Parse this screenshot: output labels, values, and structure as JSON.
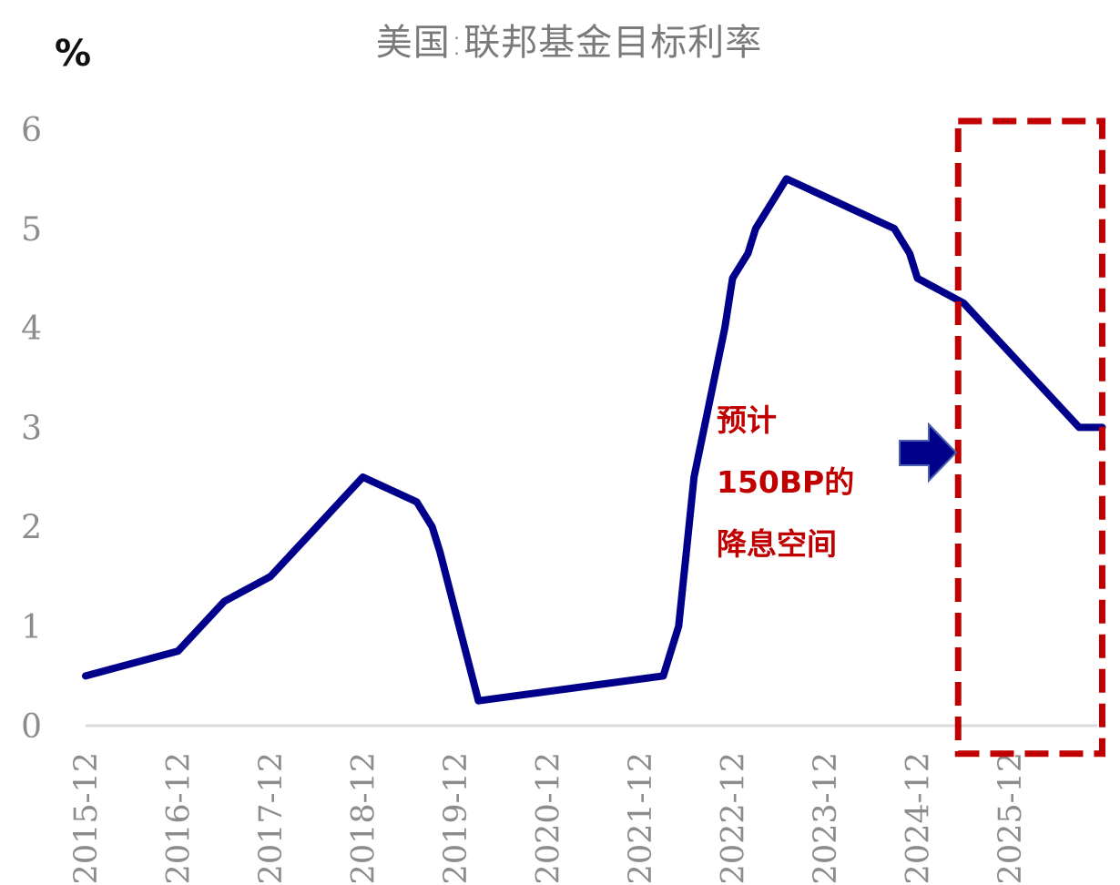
{
  "chart_data": {
    "type": "line",
    "title": "美国:联邦基金目标利率",
    "ylabel": "%",
    "ylim": [
      0,
      6
    ],
    "yticks": [
      "0",
      "1",
      "2",
      "3",
      "4",
      "5",
      "6"
    ],
    "categories": [
      "2015-12",
      "2016-12",
      "2017-12",
      "2018-12",
      "2019-12",
      "2020-12",
      "2021-12",
      "2022-12",
      "2023-12",
      "2024-12",
      "2025-12"
    ],
    "grid": false,
    "legend": "none",
    "series": [
      {
        "name": "",
        "color": "#00008b",
        "x": [
          "2015-12",
          "2016-12",
          "2017-03",
          "2017-06",
          "2017-12",
          "2018-03",
          "2018-06",
          "2018-09",
          "2018-12",
          "2019-07",
          "2019-09",
          "2019-10",
          "2020-03",
          "2022-03",
          "2022-05",
          "2022-06",
          "2022-07",
          "2022-09",
          "2022-11",
          "2022-12",
          "2023-02",
          "2023-03",
          "2023-05",
          "2023-07",
          "2024-09",
          "2024-11",
          "2024-12",
          "2025-06",
          "2025-09",
          "2025-12",
          "2026-03",
          "2026-06",
          "2026-09",
          "2026-12"
        ],
        "y": [
          0.5,
          0.75,
          1.0,
          1.25,
          1.5,
          1.75,
          2.0,
          2.25,
          2.5,
          2.25,
          2.0,
          1.75,
          0.25,
          0.5,
          1.0,
          1.75,
          2.5,
          3.25,
          4.0,
          4.5,
          4.75,
          5.0,
          5.25,
          5.5,
          5.0,
          4.75,
          4.5,
          4.25,
          4.0,
          3.75,
          3.5,
          3.25,
          3.0,
          3.0
        ]
      }
    ],
    "annotation": {
      "lines": [
        "预计",
        "150BP的",
        "降息空间"
      ],
      "color": "#c00000"
    },
    "highlight_box": {
      "x_start": "2025-06",
      "x_end": "2026-12",
      "y_start": 6.3,
      "y_end": -0.3,
      "color": "#c00000"
    },
    "arrow_color": "#00008b"
  }
}
